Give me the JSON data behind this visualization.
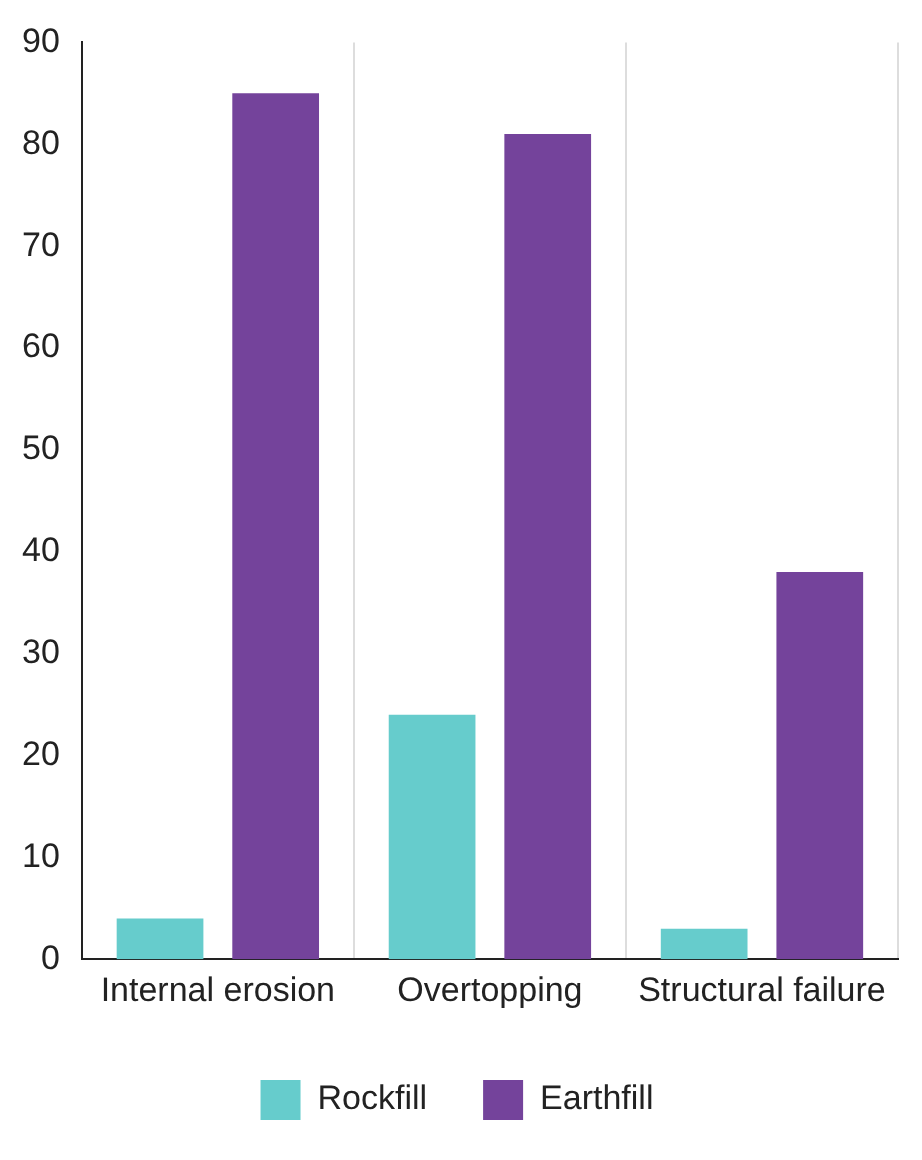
{
  "chart_data": {
    "type": "bar",
    "categories": [
      "Internal erosion",
      "Overtopping",
      "Structural failure"
    ],
    "series": [
      {
        "name": "Rockfill",
        "color": "#66cccc",
        "values": [
          4,
          24,
          3
        ]
      },
      {
        "name": "Earthfill",
        "color": "#74439b",
        "values": [
          85,
          81,
          38
        ]
      }
    ],
    "ylim": [
      0,
      90
    ],
    "yticks": [
      0,
      10,
      20,
      30,
      40,
      50,
      60,
      70,
      80,
      90
    ],
    "grid": "x",
    "legend": "bottom"
  }
}
